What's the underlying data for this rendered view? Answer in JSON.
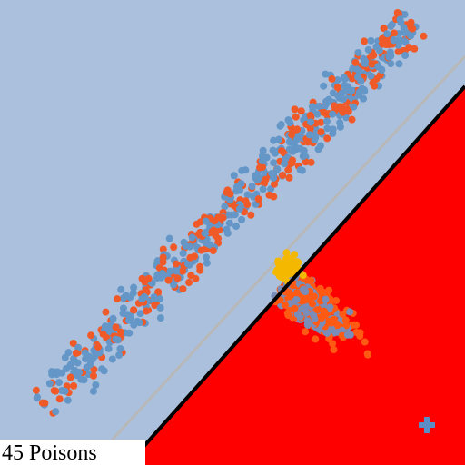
{
  "status": {
    "label": "45 Poisons"
  }
}
